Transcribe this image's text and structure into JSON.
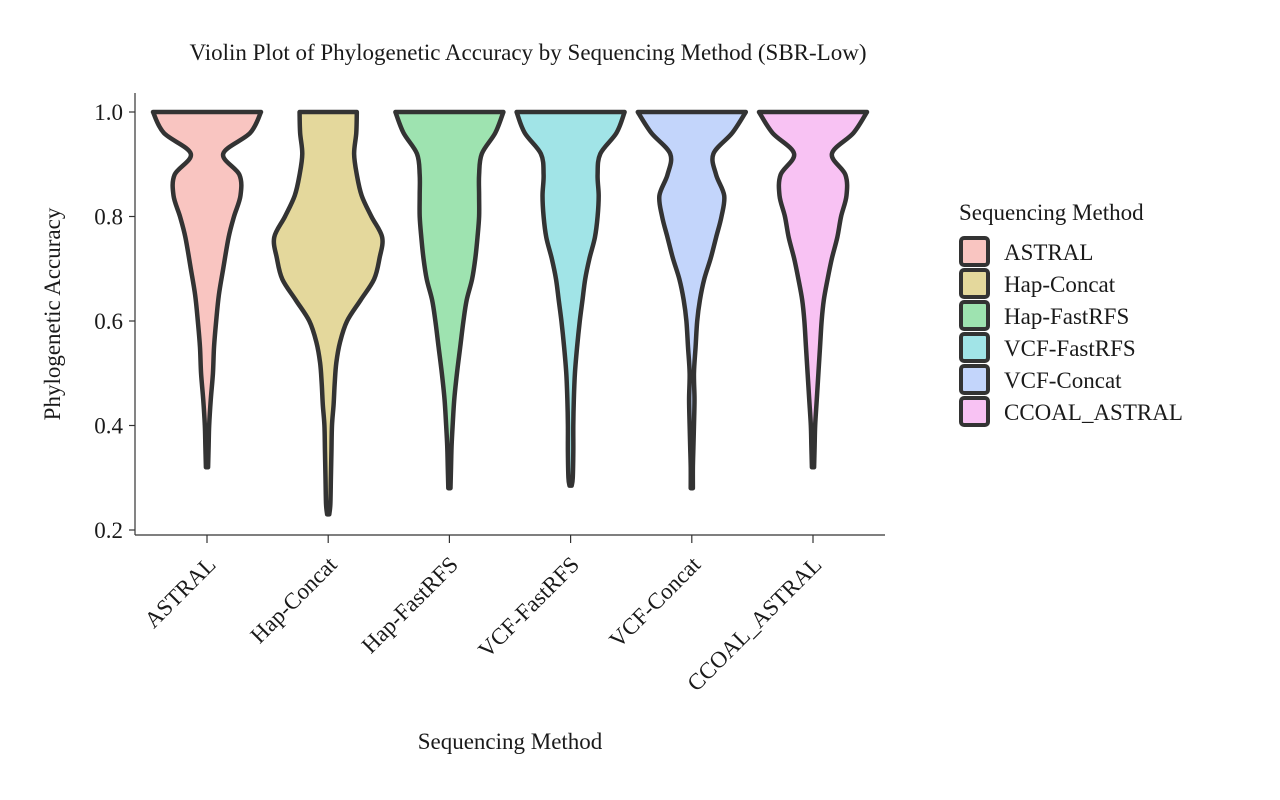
{
  "chart_data": {
    "type": "violin",
    "title": "Violin Plot of Phylogenetic Accuracy by Sequencing Method (SBR-Low)",
    "xlabel": "Sequencing Method",
    "ylabel": "Phylogenetic Accuracy",
    "ylim": [
      0.2,
      1.0
    ],
    "yticks": [
      0.2,
      0.4,
      0.6,
      0.8,
      1.0
    ],
    "ytick_labels": [
      "0.2",
      "0.4",
      "0.6",
      "0.8",
      "1.0"
    ],
    "categories": [
      "ASTRAL",
      "Hap-Concat",
      "Hap-FastRFS",
      "VCF-FastRFS",
      "VCF-Concat",
      "CCOAL_ASTRAL"
    ],
    "legend": {
      "title": "Sequencing Method",
      "position": "right",
      "entries": [
        "ASTRAL",
        "Hap-Concat",
        "Hap-FastRFS",
        "VCF-FastRFS",
        "VCF-Concat",
        "CCOAL_ASTRAL"
      ]
    },
    "outline_color": "#333333",
    "series": [
      {
        "name": "ASTRAL",
        "color": "#f9c5c1",
        "min": 0.32,
        "max": 1.0,
        "density": [
          [
            1.0,
            1.0
          ],
          [
            0.96,
            0.8
          ],
          [
            0.92,
            0.3
          ],
          [
            0.88,
            0.6
          ],
          [
            0.84,
            0.62
          ],
          [
            0.8,
            0.5
          ],
          [
            0.76,
            0.4
          ],
          [
            0.7,
            0.3
          ],
          [
            0.65,
            0.22
          ],
          [
            0.6,
            0.17
          ],
          [
            0.55,
            0.13
          ],
          [
            0.5,
            0.11
          ],
          [
            0.45,
            0.07
          ],
          [
            0.4,
            0.04
          ],
          [
            0.36,
            0.03
          ],
          [
            0.32,
            0.02
          ]
        ]
      },
      {
        "name": "Hap-Concat",
        "color": "#e4d89c",
        "min": 0.23,
        "max": 1.0,
        "density": [
          [
            1.0,
            0.53
          ],
          [
            0.96,
            0.52
          ],
          [
            0.92,
            0.48
          ],
          [
            0.88,
            0.53
          ],
          [
            0.84,
            0.62
          ],
          [
            0.8,
            0.8
          ],
          [
            0.76,
            1.0
          ],
          [
            0.72,
            0.95
          ],
          [
            0.68,
            0.85
          ],
          [
            0.64,
            0.6
          ],
          [
            0.6,
            0.35
          ],
          [
            0.56,
            0.22
          ],
          [
            0.52,
            0.15
          ],
          [
            0.48,
            0.12
          ],
          [
            0.44,
            0.1
          ],
          [
            0.4,
            0.07
          ],
          [
            0.35,
            0.06
          ],
          [
            0.3,
            0.05
          ],
          [
            0.25,
            0.04
          ],
          [
            0.23,
            0.02
          ]
        ]
      },
      {
        "name": "Hap-FastRFS",
        "color": "#9ee3b0",
        "min": 0.28,
        "max": 1.0,
        "density": [
          [
            1.0,
            1.0
          ],
          [
            0.96,
            0.85
          ],
          [
            0.92,
            0.6
          ],
          [
            0.88,
            0.55
          ],
          [
            0.84,
            0.55
          ],
          [
            0.8,
            0.55
          ],
          [
            0.76,
            0.52
          ],
          [
            0.72,
            0.48
          ],
          [
            0.68,
            0.42
          ],
          [
            0.64,
            0.32
          ],
          [
            0.6,
            0.26
          ],
          [
            0.55,
            0.2
          ],
          [
            0.5,
            0.14
          ],
          [
            0.45,
            0.09
          ],
          [
            0.4,
            0.06
          ],
          [
            0.36,
            0.04
          ],
          [
            0.32,
            0.03
          ],
          [
            0.28,
            0.02
          ]
        ]
      },
      {
        "name": "VCF-FastRFS",
        "color": "#a1e4e7",
        "min": 0.285,
        "max": 1.0,
        "density": [
          [
            1.0,
            1.0
          ],
          [
            0.96,
            0.85
          ],
          [
            0.92,
            0.55
          ],
          [
            0.88,
            0.5
          ],
          [
            0.84,
            0.52
          ],
          [
            0.8,
            0.5
          ],
          [
            0.76,
            0.45
          ],
          [
            0.72,
            0.35
          ],
          [
            0.68,
            0.27
          ],
          [
            0.64,
            0.22
          ],
          [
            0.6,
            0.17
          ],
          [
            0.55,
            0.12
          ],
          [
            0.5,
            0.08
          ],
          [
            0.45,
            0.06
          ],
          [
            0.4,
            0.05
          ],
          [
            0.35,
            0.05
          ],
          [
            0.3,
            0.04
          ],
          [
            0.285,
            0.02
          ]
        ]
      },
      {
        "name": "VCF-Concat",
        "color": "#c3d5fb",
        "min": 0.28,
        "max": 1.0,
        "density": [
          [
            1.0,
            1.0
          ],
          [
            0.96,
            0.75
          ],
          [
            0.92,
            0.4
          ],
          [
            0.88,
            0.45
          ],
          [
            0.84,
            0.6
          ],
          [
            0.8,
            0.55
          ],
          [
            0.76,
            0.45
          ],
          [
            0.72,
            0.35
          ],
          [
            0.68,
            0.23
          ],
          [
            0.64,
            0.15
          ],
          [
            0.6,
            0.1
          ],
          [
            0.55,
            0.07
          ],
          [
            0.5,
            0.04
          ],
          [
            0.45,
            0.05
          ],
          [
            0.4,
            0.04
          ],
          [
            0.36,
            0.03
          ],
          [
            0.32,
            0.02
          ],
          [
            0.28,
            0.02
          ]
        ]
      },
      {
        "name": "CCOAL_ASTRAL",
        "color": "#f8c2f3",
        "min": 0.32,
        "max": 1.0,
        "density": [
          [
            1.0,
            1.0
          ],
          [
            0.96,
            0.75
          ],
          [
            0.92,
            0.35
          ],
          [
            0.88,
            0.6
          ],
          [
            0.84,
            0.62
          ],
          [
            0.8,
            0.52
          ],
          [
            0.76,
            0.45
          ],
          [
            0.72,
            0.35
          ],
          [
            0.68,
            0.27
          ],
          [
            0.64,
            0.2
          ],
          [
            0.6,
            0.16
          ],
          [
            0.55,
            0.13
          ],
          [
            0.5,
            0.1
          ],
          [
            0.45,
            0.07
          ],
          [
            0.4,
            0.04
          ],
          [
            0.36,
            0.03
          ],
          [
            0.32,
            0.02
          ]
        ]
      }
    ]
  }
}
